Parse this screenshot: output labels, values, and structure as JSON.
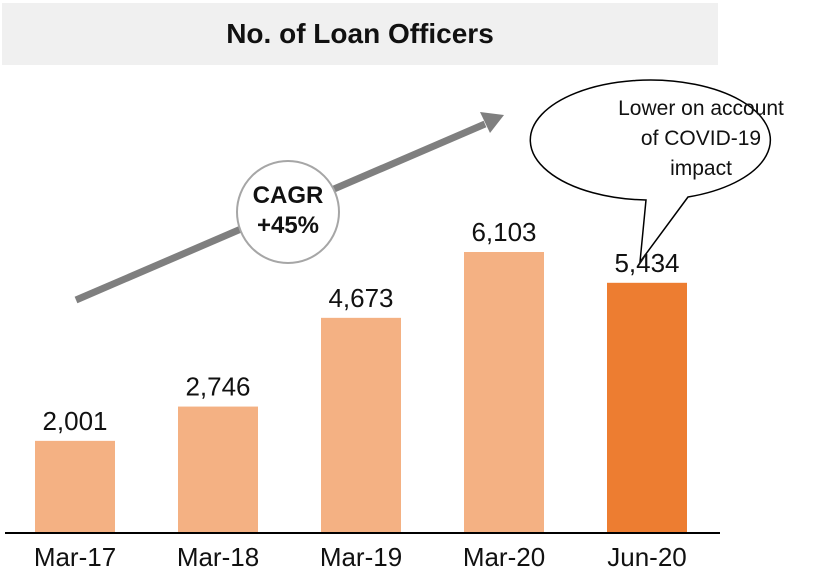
{
  "chart_data": {
    "type": "bar",
    "title": "No. of Loan Officers",
    "categories": [
      "Mar-17",
      "Mar-18",
      "Mar-19",
      "Mar-20",
      "Jun-20"
    ],
    "values": [
      2001,
      2746,
      4673,
      6103,
      5434
    ],
    "value_labels": [
      "2,001",
      "2,746",
      "4,673",
      "6,103",
      "5,434"
    ],
    "bar_colors": [
      "#f4b183",
      "#f4b183",
      "#f4b183",
      "#f4b183",
      "#ed7d31"
    ],
    "grid": false,
    "annotations": {
      "cagr": [
        "CAGR",
        "+45%"
      ],
      "callout": [
        "Lower on account",
        "of COVID-19",
        "impact"
      ]
    }
  },
  "colors": {
    "title_background": "#f0f0f0",
    "arrow": "#7f7f7f",
    "axis": "#000000"
  }
}
